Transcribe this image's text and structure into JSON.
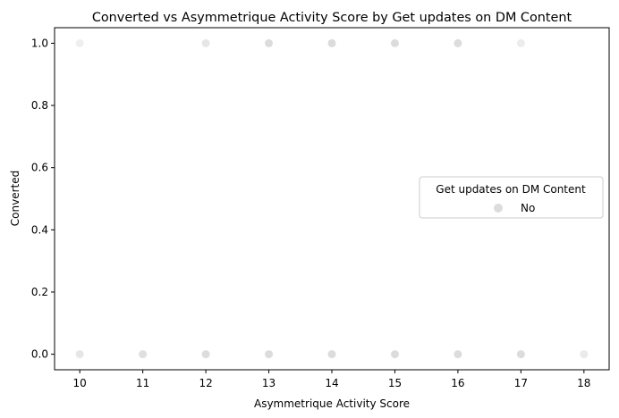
{
  "chart_data": {
    "type": "scatter",
    "title": "Converted vs Asymmetrique Activity Score by Get updates on DM Content",
    "xlabel": "Asymmetrique Activity Score",
    "ylabel": "Converted",
    "xlim": [
      9.6,
      18.4
    ],
    "ylim": [
      -0.05,
      1.05
    ],
    "xticks": [
      "10",
      "11",
      "12",
      "13",
      "14",
      "15",
      "16",
      "17",
      "18"
    ],
    "yticks": [
      "0.0",
      "0.2",
      "0.4",
      "0.6",
      "0.8",
      "1.0"
    ],
    "grid": false,
    "legend": {
      "title": "Get updates on DM Content",
      "placement": "center-right",
      "entries": [
        {
          "label": "No",
          "color": "#dcdcdc"
        }
      ]
    },
    "series": [
      {
        "name": "No",
        "color": "#dcdcdc",
        "points": [
          {
            "x": 10,
            "y": 1,
            "alpha": 0.45
          },
          {
            "x": 12,
            "y": 1,
            "alpha": 0.7
          },
          {
            "x": 13,
            "y": 1,
            "alpha": 1
          },
          {
            "x": 14,
            "y": 1,
            "alpha": 1
          },
          {
            "x": 15,
            "y": 1,
            "alpha": 1
          },
          {
            "x": 16,
            "y": 1,
            "alpha": 1
          },
          {
            "x": 17,
            "y": 1,
            "alpha": 0.55
          },
          {
            "x": 10,
            "y": 0,
            "alpha": 0.7
          },
          {
            "x": 11,
            "y": 0,
            "alpha": 0.9
          },
          {
            "x": 12,
            "y": 0,
            "alpha": 1
          },
          {
            "x": 13,
            "y": 0,
            "alpha": 1
          },
          {
            "x": 14,
            "y": 0,
            "alpha": 1
          },
          {
            "x": 15,
            "y": 0,
            "alpha": 1
          },
          {
            "x": 16,
            "y": 0,
            "alpha": 1
          },
          {
            "x": 17,
            "y": 0,
            "alpha": 1
          },
          {
            "x": 18,
            "y": 0,
            "alpha": 0.6
          }
        ]
      }
    ]
  }
}
